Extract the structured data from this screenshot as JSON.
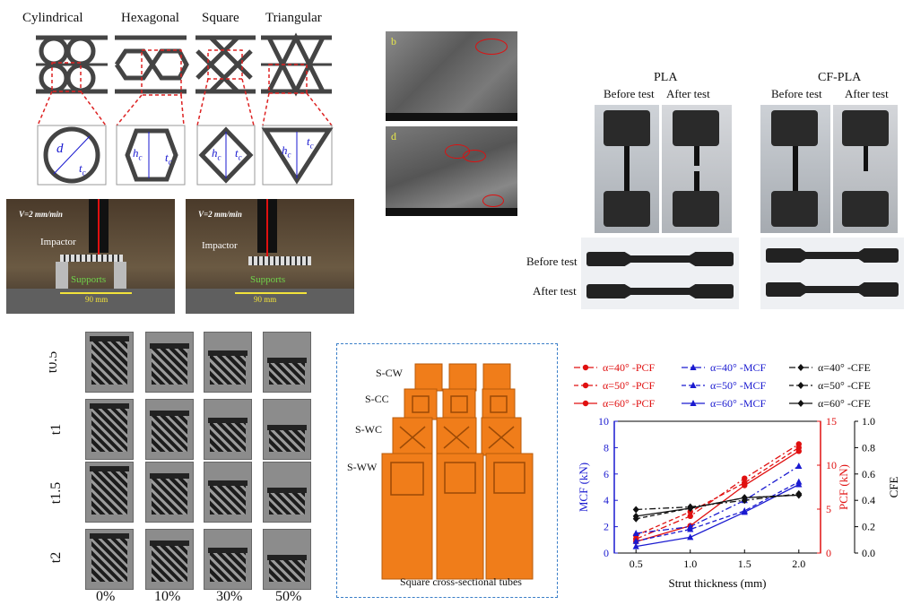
{
  "shapes": {
    "labels": [
      "Cylindrical",
      "Hexagonal",
      "Square",
      "Triangular"
    ],
    "dims": {
      "cyl_d": "d",
      "cyl_tc": "t",
      "hex_h": "h",
      "hex_tc": "t",
      "sq_h": "h",
      "sq_tc": "t",
      "tri_h": "h",
      "tri_tc": "t"
    },
    "sub_c": "c"
  },
  "impact_tests": [
    {
      "speed": "V=2 mm/min",
      "impactor": "Impactor",
      "supports": "Supports",
      "span": "90 mm"
    },
    {
      "speed": "V=2 mm/min",
      "impactor": "Impactor",
      "supports": "Supports",
      "span": "90 mm"
    }
  ],
  "sem": {
    "tags": [
      "b",
      "d"
    ]
  },
  "tensile": {
    "group_pla": "PLA",
    "group_cfpla": "CF-PLA",
    "before": "Before test",
    "after": "After test",
    "row_before": "Before test",
    "row_after": "After test"
  },
  "crush_grid": {
    "rows": [
      "t0.5",
      "t1",
      "t1.5",
      "t2"
    ],
    "cols": [
      "0%",
      "10%",
      "30%",
      "50%"
    ]
  },
  "tubes": {
    "labels": [
      "S-CW",
      "S-CC",
      "S-WC",
      "S-WW"
    ],
    "caption": "Square cross-sectional tubes",
    "color": "#f07d1a"
  },
  "chart_data": {
    "type": "line",
    "xlabel": "Strut thickness (mm)",
    "x": [
      0.5,
      1.0,
      1.5,
      2.0
    ],
    "xticks": [
      "0.5",
      "1.0",
      "1.5",
      "2.0"
    ],
    "xlim": [
      0.3,
      2.2
    ],
    "axes": {
      "MCF": {
        "label": "MCF (kN)",
        "lim": [
          0,
          10
        ],
        "ticks": [
          "0",
          "2",
          "4",
          "6",
          "8",
          "10"
        ],
        "color": "#1a1ad0"
      },
      "PCF": {
        "label": "PCF (kN)",
        "lim": [
          0,
          15
        ],
        "ticks": [
          "0",
          "5",
          "10",
          "15"
        ],
        "color": "#e01010"
      },
      "CFE": {
        "label": "CFE",
        "lim": [
          0,
          1.0
        ],
        "ticks": [
          "0.0",
          "0.2",
          "0.4",
          "0.6",
          "0.8",
          "1.0"
        ],
        "color": "#111111"
      }
    },
    "series": [
      {
        "name": "α=40° -PCF",
        "axis": "PCF",
        "style": "dash-dot",
        "marker": "circle",
        "values": [
          1.6,
          4.2,
          8.5,
          12.4
        ]
      },
      {
        "name": "α=50° -PCF",
        "axis": "PCF",
        "style": "dashed",
        "marker": "circle",
        "values": [
          2.0,
          4.7,
          8.0,
          12.0
        ]
      },
      {
        "name": "α=60° -PCF",
        "axis": "PCF",
        "style": "solid",
        "marker": "circle",
        "values": [
          1.3,
          3.1,
          7.7,
          11.6
        ]
      },
      {
        "name": "α=40° -MCF",
        "axis": "MCF",
        "style": "dash-dot",
        "marker": "triangle",
        "values": [
          1.5,
          2.0,
          4.0,
          6.6
        ]
      },
      {
        "name": "α=50° -MCF",
        "axis": "MCF",
        "style": "dashed",
        "marker": "triangle",
        "values": [
          0.9,
          1.8,
          3.2,
          5.4
        ]
      },
      {
        "name": "α=60° -MCF",
        "axis": "MCF",
        "style": "solid",
        "marker": "triangle",
        "values": [
          0.5,
          1.2,
          3.1,
          5.2
        ]
      },
      {
        "name": "α=40° -CFE",
        "axis": "CFE",
        "style": "dash-dot",
        "marker": "diamond",
        "values": [
          0.33,
          0.35,
          0.4,
          0.45
        ]
      },
      {
        "name": "α=50° -CFE",
        "axis": "CFE",
        "style": "dashed",
        "marker": "diamond",
        "values": [
          0.26,
          0.34,
          0.42,
          0.44
        ]
      },
      {
        "name": "α=60° -CFE",
        "axis": "CFE",
        "style": "solid",
        "marker": "diamond",
        "values": [
          0.28,
          0.34,
          0.42,
          0.44
        ]
      }
    ]
  }
}
